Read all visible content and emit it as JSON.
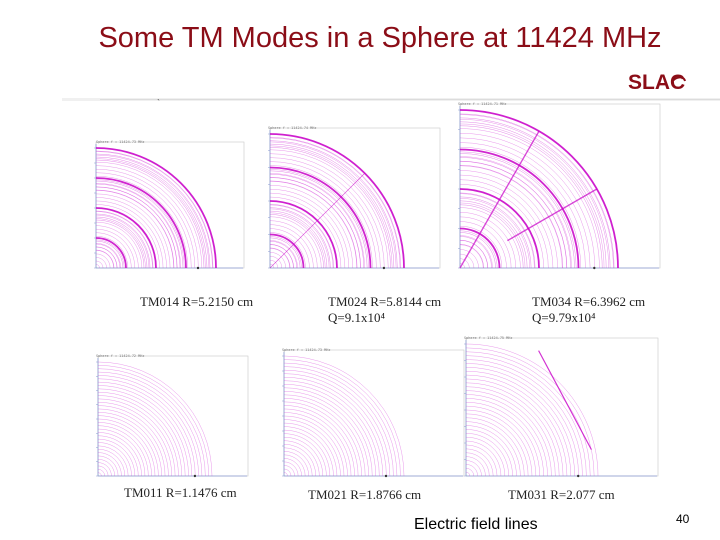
{
  "slide": {
    "title": "Some TM Modes in a Sphere at 11424 MHz",
    "logo": "SLAC",
    "footer": "Electric field lines",
    "page_number": "40",
    "tick": "`"
  },
  "plots": [
    {
      "header": "Sphere  f = 11424.73 MHz",
      "caption": "TM014 R=5.2150 cm",
      "q": "",
      "rings": 4
    },
    {
      "header": "Sphere  f = 11424.74 MHz",
      "caption": "TM024 R=5.8144 cm",
      "q": "Q=9.1x10⁴",
      "rings": 4
    },
    {
      "header": "Sphere  f = 11424.71 MHz",
      "caption": "TM034 R=6.3962 cm",
      "q": "Q=9.79x10⁴",
      "rings": 4
    },
    {
      "header": "Sphere  f = 11424.72 MHz",
      "caption": "TM011 R=1.1476 cm",
      "q": "",
      "rings": 1
    },
    {
      "header": "Sphere  f = 11424.73 MHz",
      "caption": "TM021 R=1.8766 cm",
      "q": "",
      "rings": 1
    },
    {
      "header": "Sphere  f = 11424.75 MHz",
      "caption": "TM031 R=2.077 cm",
      "q": "",
      "rings": 1
    }
  ],
  "colors": {
    "title": "#8b0d17",
    "field_lines": "#d23ad8",
    "node_lines": "#c800c8",
    "axes": "#8a9ad0"
  }
}
